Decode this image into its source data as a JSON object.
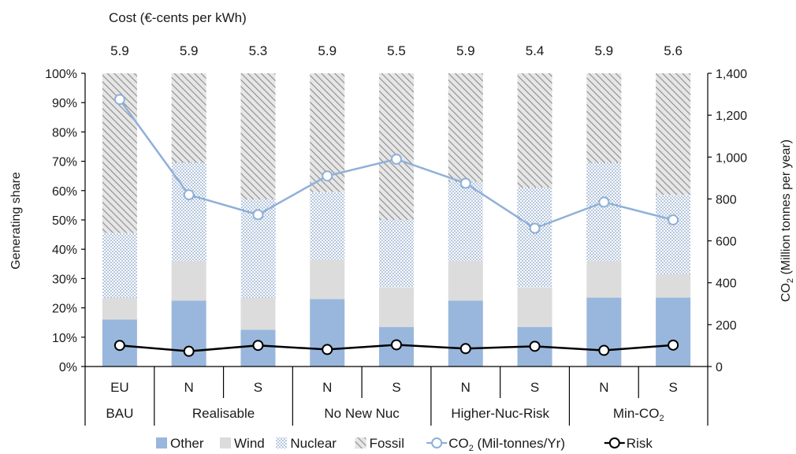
{
  "chart_data": {
    "type": "bar",
    "stacked": true,
    "cost_title": "Cost (€-cents per kWh)",
    "cost_values": [
      "5.9",
      "5.9",
      "5.3",
      "5.9",
      "5.5",
      "5.9",
      "5.4",
      "5.9",
      "5.6"
    ],
    "categories": [
      "EU",
      "N",
      "S",
      "N",
      "S",
      "N",
      "S",
      "N",
      "S"
    ],
    "groups": [
      {
        "label": "BAU",
        "span": 1
      },
      {
        "label": "Realisable",
        "span": 2
      },
      {
        "label": "No New Nuc",
        "span": 2
      },
      {
        "label": "Higher-Nuc-Risk",
        "span": 2
      },
      {
        "label": "Min-CO",
        "sub": "2",
        "span": 2
      }
    ],
    "ylabel_left": "Generating share",
    "ylabel_right": "CO",
    "ylabel_right_sub": "2",
    "ylabel_right_tail": " (Million tonnes per year)",
    "ylim_left": [
      0,
      100
    ],
    "ylim_right": [
      0,
      1400
    ],
    "yticks_left": [
      "0%",
      "10%",
      "20%",
      "30%",
      "40%",
      "50%",
      "60%",
      "70%",
      "80%",
      "90%",
      "100%"
    ],
    "yticks_right": [
      "0",
      "200",
      "400",
      "600",
      "800",
      "1,000",
      "1,200",
      "1,400"
    ],
    "series": [
      {
        "name": "Other",
        "kind": "bar",
        "color": "#99b7dc",
        "pattern": "solid",
        "values": [
          16,
          22.5,
          12.5,
          23,
          13.5,
          22.5,
          13.5,
          23.5,
          23.5
        ]
      },
      {
        "name": "Wind",
        "kind": "bar",
        "color": "#dcdcdc",
        "pattern": "solid",
        "values": [
          7.5,
          13.5,
          11,
          13.5,
          13.5,
          13.5,
          13.5,
          12.5,
          8
        ]
      },
      {
        "name": "Nuclear",
        "kind": "bar",
        "color": "#5b82b8",
        "pattern": "dots",
        "values": [
          22,
          33.5,
          33.5,
          23,
          23,
          27,
          34,
          33.5,
          27
        ]
      },
      {
        "name": "Fossil",
        "kind": "bar",
        "color": "#a8a8a8",
        "pattern": "hatch",
        "values": [
          54.5,
          30.5,
          43,
          40.5,
          50,
          37,
          39,
          30.5,
          41.5
        ]
      },
      {
        "name": "CO",
        "name_sub": "2",
        "name_tail": "  (Mil-tonnes/Yr)",
        "kind": "line",
        "axis": "right",
        "color": "#8fb0d8",
        "values": [
          1275,
          820,
          725,
          910,
          990,
          875,
          660,
          785,
          700
        ]
      },
      {
        "name": "Risk",
        "kind": "line",
        "axis": "left",
        "color": "#000000",
        "values": [
          7.2,
          5.2,
          7.2,
          5.8,
          7.4,
          6.1,
          6.9,
          5.5,
          7.3
        ]
      }
    ],
    "legend_position": "bottom",
    "grid": false
  }
}
